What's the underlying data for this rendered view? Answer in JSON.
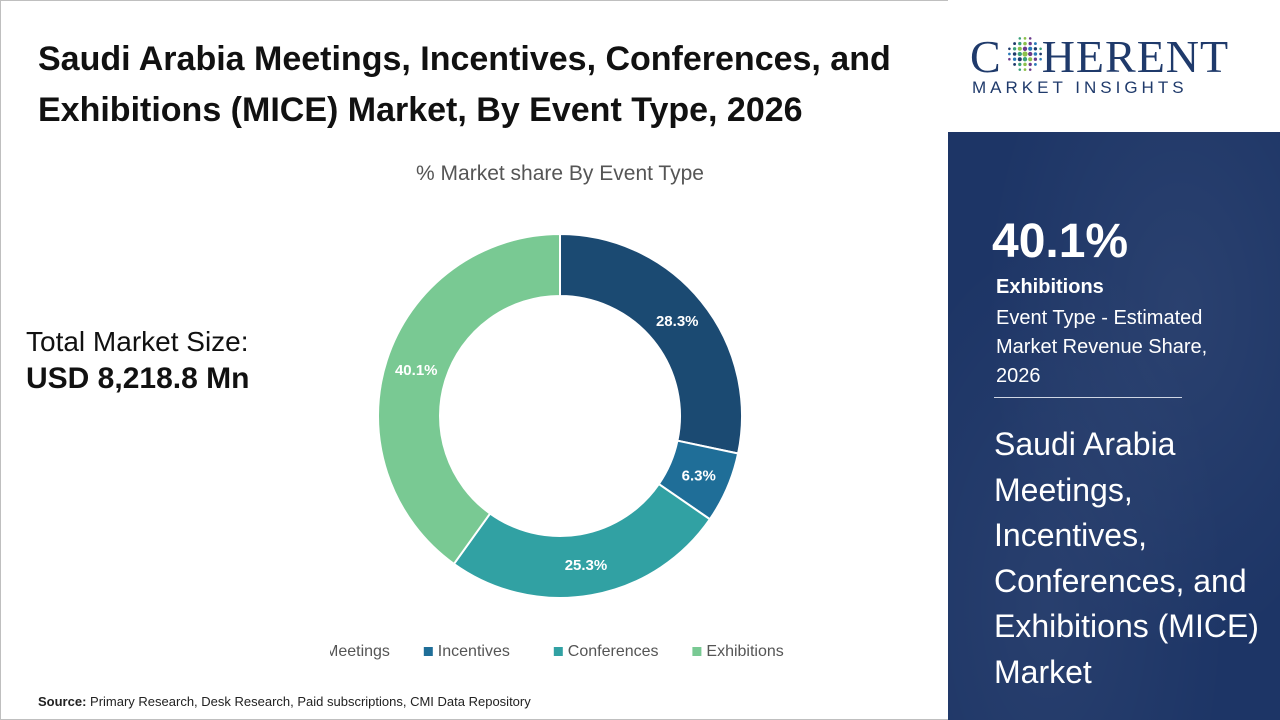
{
  "title": "Saudi Arabia Meetings, Incentives, Conferences, and Exhibitions (MICE) Market, By Event Type, 2026",
  "market_size": {
    "label": "Total Market Size:",
    "value": "USD  8,218.8 Mn"
  },
  "chart_data": {
    "type": "pie",
    "subtype": "donut",
    "title": "% Market share By Event Type",
    "categories": [
      "Meetings",
      "Incentives",
      "Conferences",
      "Exhibitions"
    ],
    "values": [
      28.3,
      6.3,
      25.3,
      40.1
    ],
    "labels": [
      "28.3%",
      "6.3%",
      "25.3%",
      "40.1%"
    ],
    "colors": [
      "#1b4a72",
      "#1f6e98",
      "#31a1a3",
      "#79c993"
    ],
    "legend_position": "bottom"
  },
  "source": {
    "label": "Source:",
    "text": "Primary Research, Desk Research, Paid subscriptions, CMI Data Repository"
  },
  "logo": {
    "main_left": "C",
    "main_right": "HERENT",
    "sub": "MARKET INSIGHTS"
  },
  "highlight": {
    "percent": "40.1%",
    "category": "Exhibitions",
    "description": "Event Type - Estimated Market Revenue Share, 2026"
  },
  "panel_title": "Saudi Arabia Meetings, Incentives, Conferences, and Exhibitions (MICE) Market"
}
